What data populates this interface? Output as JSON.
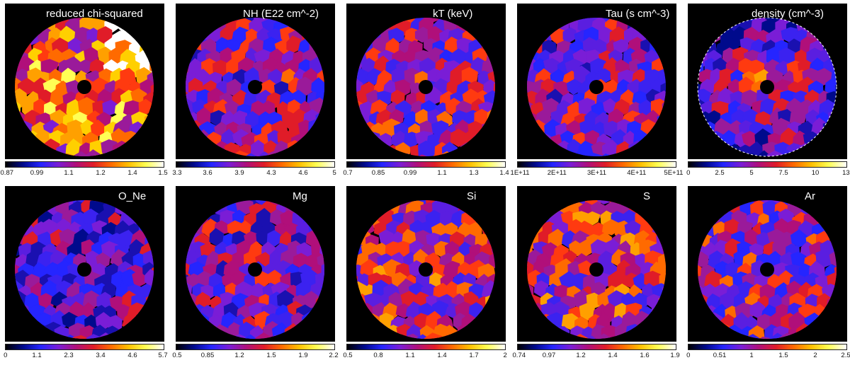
{
  "colorbar_colors": [
    "#000000",
    "#000a8c",
    "#2525ff",
    "#7a1dd6",
    "#b00f7a",
    "#e01c28",
    "#ff6a00",
    "#ffc000",
    "#ffff55",
    "#ffffff"
  ],
  "panels": [
    {
      "title": "reduced chi-squared",
      "ticks": [
        "0.87",
        "0.99",
        "1.1",
        "1.2",
        "1.4",
        "1.5"
      ],
      "seed": 3,
      "level": 0.62,
      "dashed": false
    },
    {
      "title": "NH (E22 cm^-2)",
      "ticks": [
        "3.3",
        "3.6",
        "3.9",
        "4.3",
        "4.6",
        "5"
      ],
      "seed": 11,
      "level": 0.4,
      "dashed": false
    },
    {
      "title": "kT (keV)",
      "ticks": [
        "0.7",
        "0.85",
        "0.99",
        "1.1",
        "1.3",
        "1.4"
      ],
      "seed": 19,
      "level": 0.45,
      "dashed": false
    },
    {
      "title": "Tau (s cm^-3)",
      "ticks": [
        "1E+11",
        "2E+11",
        "3E+11",
        "4E+11",
        "5E+11"
      ],
      "seed": 27,
      "level": 0.38,
      "dashed": false
    },
    {
      "title": "density (cm^-3)",
      "ticks": [
        "0",
        "2.5",
        "5",
        "7.5",
        "10",
        "13"
      ],
      "seed": 35,
      "level": 0.35,
      "dashed": true
    },
    {
      "title": "O_Ne",
      "ticks": [
        "0",
        "1.1",
        "2.3",
        "3.4",
        "4.6",
        "5.7"
      ],
      "seed": 43,
      "level": 0.32,
      "dashed": false
    },
    {
      "title": "Mg",
      "ticks": [
        "0.5",
        "0.85",
        "1.2",
        "1.5",
        "1.9",
        "2.2"
      ],
      "seed": 51,
      "level": 0.36,
      "dashed": false
    },
    {
      "title": "Si",
      "ticks": [
        "0.5",
        "0.8",
        "1.1",
        "1.4",
        "1.7",
        "2"
      ],
      "seed": 59,
      "level": 0.48,
      "dashed": false
    },
    {
      "title": "S",
      "ticks": [
        "0.74",
        "0.97",
        "1.2",
        "1.4",
        "1.6",
        "1.9"
      ],
      "seed": 67,
      "level": 0.5,
      "dashed": false
    },
    {
      "title": "Ar",
      "ticks": [
        "0",
        "0.51",
        "1",
        "1.5",
        "2",
        "2.5"
      ],
      "seed": 75,
      "level": 0.42,
      "dashed": false
    }
  ]
}
